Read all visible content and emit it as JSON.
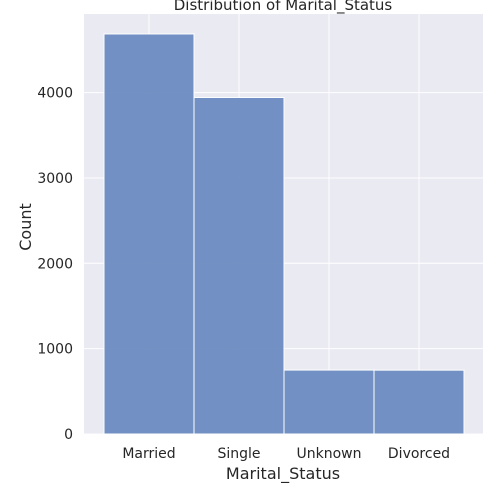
{
  "chart_data": {
    "type": "bar",
    "title": "Distribution of Marital_Status",
    "xlabel": "Marital_Status",
    "ylabel": "Count",
    "categories": [
      "Married",
      "Single",
      "Unknown",
      "Divorced"
    ],
    "values": [
      4687,
      3943,
      749,
      748
    ],
    "yticks": [
      0,
      1000,
      2000,
      3000,
      4000
    ],
    "ylim": [
      0,
      4921
    ],
    "grid": true,
    "colors": {
      "bar": "#6b8bc0",
      "bar_edge": "#ffffff",
      "background": "#eaeaf2",
      "grid": "#ffffff"
    }
  }
}
